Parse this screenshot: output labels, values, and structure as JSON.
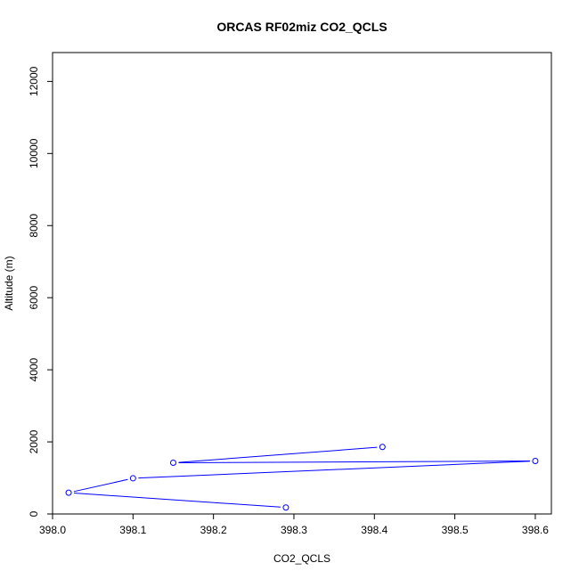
{
  "chart_data": {
    "type": "scatter",
    "title": "ORCAS RF02miz CO2_QCLS",
    "xlabel": "CO2_QCLS",
    "ylabel": "Altitude (m)",
    "xlim": [
      398.0,
      398.62
    ],
    "ylim": [
      0,
      12800
    ],
    "x_ticks": [
      "398.0",
      "398.1",
      "398.2",
      "398.3",
      "398.4",
      "398.5",
      "398.6"
    ],
    "y_ticks": [
      "0",
      "2000",
      "4000",
      "6000",
      "8000",
      "10000",
      "12000"
    ],
    "series": [
      {
        "color": "#0000ff",
        "x": [
          398.29,
          398.02,
          398.1,
          398.6,
          398.15,
          398.41
        ],
        "y": [
          180,
          590,
          990,
          1470,
          1420,
          1860
        ]
      }
    ]
  }
}
